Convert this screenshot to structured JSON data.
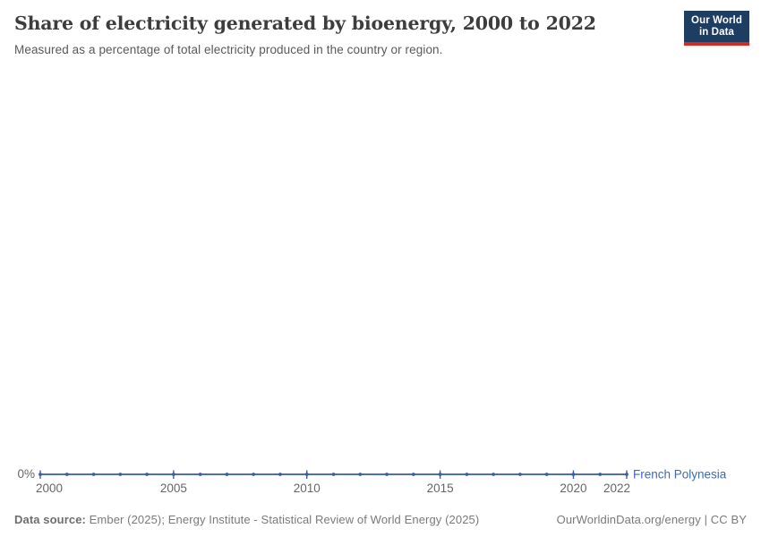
{
  "header": {
    "title": "Share of electricity generated by bioenergy, 2000 to 2022",
    "subtitle": "Measured as a percentage of total electricity produced in the country or region.",
    "logo": {
      "line1": "Our World",
      "line2": "in Data"
    }
  },
  "chart_data": {
    "type": "line",
    "title": "Share of electricity generated by bioenergy, 2000 to 2022",
    "x": [
      2000,
      2001,
      2002,
      2003,
      2004,
      2005,
      2006,
      2007,
      2008,
      2009,
      2010,
      2011,
      2012,
      2013,
      2014,
      2015,
      2016,
      2017,
      2018,
      2019,
      2020,
      2021,
      2022
    ],
    "series": [
      {
        "name": "French Polynesia",
        "values": [
          0,
          0,
          0,
          0,
          0,
          0,
          0,
          0,
          0,
          0,
          0,
          0,
          0,
          0,
          0,
          0,
          0,
          0,
          0,
          0,
          0,
          0,
          0
        ],
        "color": "#4e6fb2"
      }
    ],
    "xlabel": "",
    "ylabel": "",
    "x_axis_ticks": [
      2000,
      2005,
      2010,
      2015,
      2020,
      2022
    ],
    "y_axis_tick_labels": [
      "0%"
    ],
    "xlim": [
      2000,
      2022
    ],
    "ylim": [
      0,
      0
    ],
    "grid": false,
    "legend_position": "end-of-line",
    "marker": "dot"
  },
  "footer": {
    "data_source_label": "Data source:",
    "data_source_text": " Ember (2025); Energy Institute - Statistical Review of World Energy (2025)",
    "link_text": "OurWorldinData.org/energy | CC BY"
  },
  "colors": {
    "line": "#4e6fb2",
    "marker": "#3a5fa8",
    "entity_label": "#3d6bb4",
    "axis_text": "#666666",
    "logo_bg": "#1d3d63",
    "logo_red": "#d42b21"
  }
}
